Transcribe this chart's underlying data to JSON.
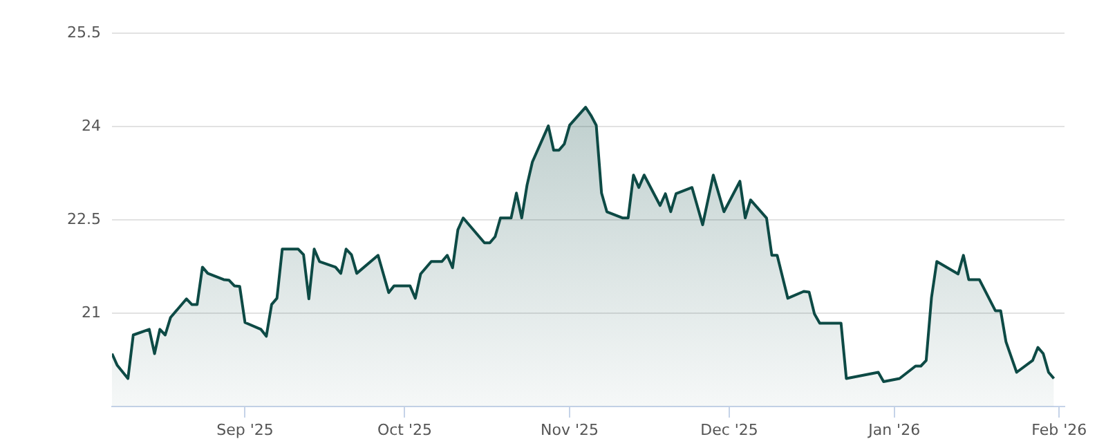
{
  "chart_data": {
    "type": "area",
    "x": [
      "2025-08-07",
      "2025-08-08",
      "2025-08-10",
      "2025-08-11",
      "2025-08-14",
      "2025-08-15",
      "2025-08-16",
      "2025-08-17",
      "2025-08-18",
      "2025-08-21",
      "2025-08-22",
      "2025-08-23",
      "2025-08-24",
      "2025-08-25",
      "2025-08-28",
      "2025-08-29",
      "2025-08-30",
      "2025-08-31",
      "2025-09-01",
      "2025-09-04",
      "2025-09-05",
      "2025-09-06",
      "2025-09-07",
      "2025-09-08",
      "2025-09-11",
      "2025-09-12",
      "2025-09-13",
      "2025-09-14",
      "2025-09-15",
      "2025-09-18",
      "2025-09-19",
      "2025-09-20",
      "2025-09-21",
      "2025-09-22",
      "2025-09-26",
      "2025-09-28",
      "2025-09-29",
      "2025-10-02",
      "2025-10-03",
      "2025-10-04",
      "2025-10-06",
      "2025-10-08",
      "2025-10-09",
      "2025-10-10",
      "2025-10-11",
      "2025-10-12",
      "2025-10-16",
      "2025-10-17",
      "2025-10-18",
      "2025-10-19",
      "2025-10-21",
      "2025-10-22",
      "2025-10-23",
      "2025-10-24",
      "2025-10-25",
      "2025-10-28",
      "2025-10-29",
      "2025-10-30",
      "2025-10-31",
      "2025-11-01",
      "2025-11-04",
      "2025-11-05",
      "2025-11-06",
      "2025-11-07",
      "2025-11-08",
      "2025-11-11",
      "2025-11-12",
      "2025-11-13",
      "2025-11-14",
      "2025-11-15",
      "2025-11-18",
      "2025-11-19",
      "2025-11-20",
      "2025-11-21",
      "2025-11-24",
      "2025-11-26",
      "2025-11-28",
      "2025-11-30",
      "2025-12-03",
      "2025-12-04",
      "2025-12-05",
      "2025-12-08",
      "2025-12-09",
      "2025-12-10",
      "2025-12-12",
      "2025-12-15",
      "2025-12-16",
      "2025-12-17",
      "2025-12-18",
      "2025-12-22",
      "2025-12-23",
      "2025-12-29",
      "2025-12-30",
      "2026-01-02",
      "2026-01-05",
      "2026-01-06",
      "2026-01-07",
      "2026-01-08",
      "2026-01-09",
      "2026-01-13",
      "2026-01-14",
      "2026-01-15",
      "2026-01-17",
      "2026-01-20",
      "2026-01-21",
      "2026-01-22",
      "2026-01-24",
      "2026-01-27",
      "2026-01-28",
      "2026-01-29",
      "2026-01-30",
      "2026-01-31"
    ],
    "series": [
      {
        "color": "#0d4a45",
        "values": [
          20.35,
          20.16,
          19.95,
          20.65,
          20.74,
          20.35,
          20.74,
          20.65,
          20.93,
          21.23,
          21.14,
          21.14,
          21.74,
          21.64,
          21.54,
          21.53,
          21.44,
          21.43,
          20.85,
          20.74,
          20.63,
          21.14,
          21.24,
          22.03,
          22.03,
          21.94,
          21.23,
          22.03,
          21.83,
          21.74,
          21.64,
          22.03,
          21.94,
          21.64,
          21.93,
          21.33,
          21.44,
          21.44,
          21.24,
          21.63,
          21.83,
          21.83,
          21.93,
          21.73,
          22.34,
          22.53,
          22.13,
          22.13,
          22.23,
          22.53,
          22.53,
          22.93,
          22.53,
          23.06,
          23.43,
          24.01,
          23.62,
          23.62,
          23.72,
          24.02,
          24.31,
          24.18,
          24.02,
          22.93,
          22.63,
          22.53,
          22.53,
          23.22,
          23.02,
          23.22,
          22.73,
          22.92,
          22.63,
          22.92,
          23.02,
          22.42,
          23.22,
          22.63,
          23.12,
          22.53,
          22.82,
          22.53,
          21.93,
          21.93,
          21.24,
          21.35,
          21.34,
          20.99,
          20.84,
          20.84,
          19.95,
          20.05,
          19.9,
          19.95,
          20.15,
          20.15,
          20.24,
          21.25,
          21.83,
          21.63,
          21.93,
          21.54,
          21.54,
          21.04,
          21.04,
          20.54,
          20.05,
          20.24,
          20.45,
          20.35,
          20.05,
          19.95
        ]
      }
    ],
    "xlim": [
      "2025-08-07",
      "2026-02-02"
    ],
    "xticks": [
      {
        "value": "2025-09-01",
        "label": "Sep '25"
      },
      {
        "value": "2025-10-01",
        "label": "Oct '25"
      },
      {
        "value": "2025-11-01",
        "label": "Nov '25"
      },
      {
        "value": "2025-12-01",
        "label": "Dec '25"
      },
      {
        "value": "2026-01-01",
        "label": "Jan '26"
      },
      {
        "value": "2026-02-01",
        "label": "Feb '26"
      }
    ],
    "ylim": [
      19.5,
      25.5
    ],
    "yticks": [
      21,
      22.5,
      24,
      25.5
    ],
    "grid": "y",
    "marker": "none",
    "line_style": "solid"
  }
}
